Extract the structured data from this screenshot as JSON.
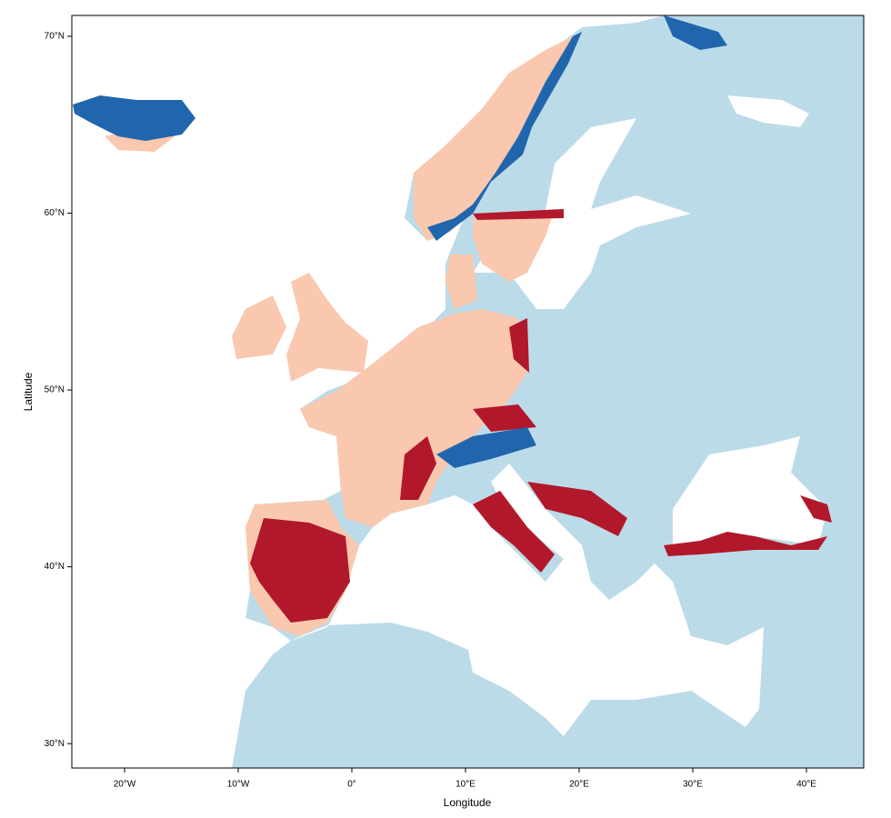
{
  "chart_data": {
    "type": "map",
    "xlabel": "Longitude",
    "ylabel": "Latitude",
    "xlim": [
      -24.64,
      45.04
    ],
    "ylim": [
      28.62,
      71.18
    ],
    "xticks": [
      {
        "value": -20,
        "label": "20°W"
      },
      {
        "value": -10,
        "label": "10°W"
      },
      {
        "value": 0,
        "label": "0°"
      },
      {
        "value": 10,
        "label": "10°E"
      },
      {
        "value": 20,
        "label": "20°E"
      },
      {
        "value": 30,
        "label": "30°E"
      },
      {
        "value": 40,
        "label": "40°E"
      }
    ],
    "yticks": [
      {
        "value": 30,
        "label": "30°N"
      },
      {
        "value": 40,
        "label": "40°N"
      },
      {
        "value": 50,
        "label": "50°N"
      },
      {
        "value": 60,
        "label": "60°N"
      },
      {
        "value": 70,
        "label": "70°N"
      }
    ]
  }
}
